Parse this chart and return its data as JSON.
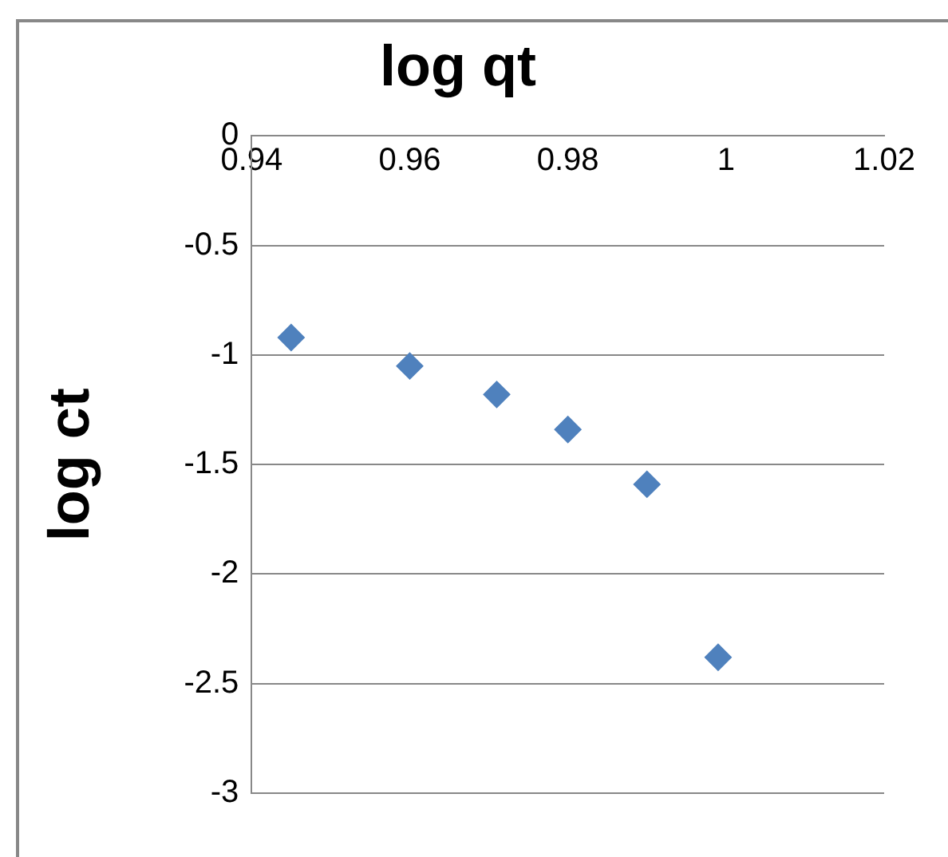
{
  "chart_data": {
    "type": "scatter",
    "title": "log qt",
    "ylabel": "log ct",
    "x": [
      0.945,
      0.96,
      0.971,
      0.98,
      0.99,
      0.999
    ],
    "series": [
      {
        "color": "#4f81bd",
        "values": [
          -0.92,
          -1.05,
          -1.18,
          -1.34,
          -1.59,
          -2.38
        ]
      }
    ],
    "xlim": [
      0.94,
      1.02
    ],
    "xticks": [
      0.94,
      0.96,
      0.98,
      1,
      1.02
    ],
    "ylim": [
      -3,
      0
    ],
    "yticks": [
      -3,
      -2.5,
      -2,
      -1.5,
      -1,
      -0.5,
      0
    ],
    "grid": "y",
    "legend": false,
    "marker": "diamond"
  }
}
